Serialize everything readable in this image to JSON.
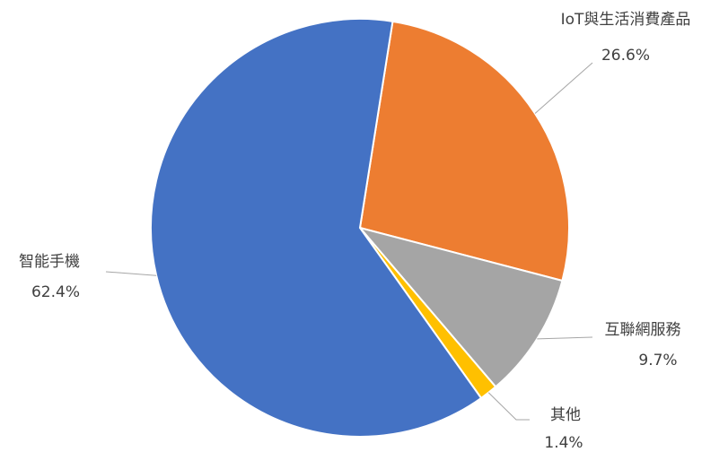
{
  "chart_data": {
    "type": "pie",
    "categories": [
      "IoT與生活消費產品",
      "互聯網服務",
      "其他",
      "智能手機"
    ],
    "values": [
      26.6,
      9.7,
      1.4,
      62.4
    ],
    "value_labels": [
      "26.6%",
      "9.7%",
      "1.4%",
      "62.4%"
    ],
    "colors": [
      "#ed7d31",
      "#a5a5a5",
      "#ffc000",
      "#4472c4"
    ]
  }
}
